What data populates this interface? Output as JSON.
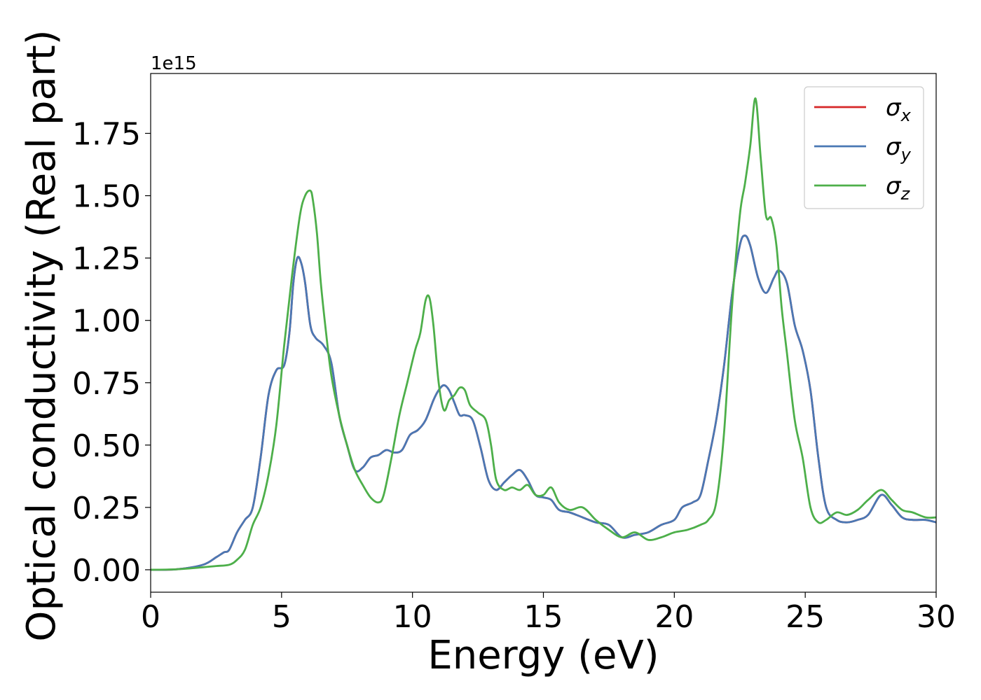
{
  "chart_data": {
    "type": "line",
    "title": "",
    "xlabel": "Energy (eV)",
    "ylabel": "Optical conductivity (Real part)",
    "y_offset_text": "1e15",
    "xlim": [
      0,
      30
    ],
    "ylim": [
      -0.09,
      1.99
    ],
    "y_multiplier": 1000000000000000.0,
    "grid": false,
    "legend_position": "top-right",
    "x_ticks": [
      0,
      5,
      10,
      15,
      20,
      25,
      30
    ],
    "x_tick_labels": [
      "0",
      "5",
      "10",
      "15",
      "20",
      "25",
      "30"
    ],
    "y_ticks": [
      0.0,
      0.25,
      0.5,
      0.75,
      1.0,
      1.25,
      1.5,
      1.75
    ],
    "y_tick_labels": [
      "0.00",
      "0.25",
      "0.50",
      "0.75",
      "1.00",
      "1.25",
      "1.50",
      "1.75"
    ],
    "series": [
      {
        "name": "σx",
        "legend_base": "σ",
        "legend_sub": "x",
        "color": "#d62728",
        "x": [
          0,
          1,
          2,
          2.5,
          2.8,
          3,
          3.3,
          3.6,
          3.9,
          4.2,
          4.5,
          4.8,
          5.1,
          5.3,
          5.45,
          5.6,
          5.75,
          5.9,
          6.1,
          6.3,
          6.6,
          6.9,
          7.2,
          7.5,
          7.8,
          8.1,
          8.4,
          8.7,
          9,
          9.3,
          9.6,
          9.9,
          10.2,
          10.5,
          10.8,
          11,
          11.2,
          11.4,
          11.6,
          11.8,
          12,
          12.3,
          12.6,
          12.9,
          13.2,
          13.5,
          13.8,
          14.1,
          14.4,
          14.7,
          15,
          15.3,
          15.6,
          16,
          16.5,
          17,
          17.5,
          18,
          18.5,
          19,
          19.5,
          20,
          20.3,
          20.7,
          21,
          21.3,
          21.6,
          21.9,
          22.2,
          22.5,
          22.7,
          22.9,
          23.2,
          23.5,
          23.8,
          24,
          24.3,
          24.6,
          24.9,
          25.2,
          25.5,
          25.8,
          26.2,
          26.6,
          27,
          27.4,
          27.9,
          28.3,
          28.7,
          29.1,
          29.6,
          30
        ],
        "y": [
          0,
          0.002,
          0.02,
          0.05,
          0.07,
          0.08,
          0.15,
          0.2,
          0.25,
          0.45,
          0.7,
          0.8,
          0.82,
          0.95,
          1.15,
          1.25,
          1.23,
          1.15,
          0.98,
          0.93,
          0.9,
          0.83,
          0.62,
          0.5,
          0.4,
          0.41,
          0.45,
          0.46,
          0.48,
          0.47,
          0.48,
          0.54,
          0.56,
          0.6,
          0.68,
          0.72,
          0.74,
          0.72,
          0.67,
          0.62,
          0.62,
          0.6,
          0.49,
          0.36,
          0.32,
          0.35,
          0.38,
          0.4,
          0.36,
          0.3,
          0.29,
          0.28,
          0.24,
          0.23,
          0.21,
          0.19,
          0.18,
          0.13,
          0.14,
          0.15,
          0.18,
          0.2,
          0.25,
          0.27,
          0.3,
          0.44,
          0.6,
          0.82,
          1.1,
          1.3,
          1.34,
          1.3,
          1.17,
          1.11,
          1.17,
          1.2,
          1.15,
          0.98,
          0.88,
          0.72,
          0.45,
          0.25,
          0.2,
          0.19,
          0.2,
          0.22,
          0.3,
          0.26,
          0.21,
          0.2,
          0.2,
          0.19
        ]
      },
      {
        "name": "σy",
        "legend_base": "σ",
        "legend_sub": "y",
        "color": "#4a78b4",
        "x": [
          0,
          1,
          2,
          2.5,
          2.8,
          3,
          3.3,
          3.6,
          3.9,
          4.2,
          4.5,
          4.8,
          5.1,
          5.3,
          5.45,
          5.6,
          5.75,
          5.9,
          6.1,
          6.3,
          6.6,
          6.9,
          7.2,
          7.5,
          7.8,
          8.1,
          8.4,
          8.7,
          9,
          9.3,
          9.6,
          9.9,
          10.2,
          10.5,
          10.8,
          11,
          11.2,
          11.4,
          11.6,
          11.8,
          12,
          12.3,
          12.6,
          12.9,
          13.2,
          13.5,
          13.8,
          14.1,
          14.4,
          14.7,
          15,
          15.3,
          15.6,
          16,
          16.5,
          17,
          17.5,
          18,
          18.5,
          19,
          19.5,
          20,
          20.3,
          20.7,
          21,
          21.3,
          21.6,
          21.9,
          22.2,
          22.5,
          22.7,
          22.9,
          23.2,
          23.5,
          23.8,
          24,
          24.3,
          24.6,
          24.9,
          25.2,
          25.5,
          25.8,
          26.2,
          26.6,
          27,
          27.4,
          27.9,
          28.3,
          28.7,
          29.1,
          29.6,
          30
        ],
        "y": [
          0,
          0.002,
          0.02,
          0.05,
          0.07,
          0.08,
          0.15,
          0.2,
          0.25,
          0.45,
          0.7,
          0.8,
          0.82,
          0.95,
          1.15,
          1.25,
          1.23,
          1.15,
          0.98,
          0.93,
          0.9,
          0.83,
          0.62,
          0.5,
          0.4,
          0.41,
          0.45,
          0.46,
          0.48,
          0.47,
          0.48,
          0.54,
          0.56,
          0.6,
          0.68,
          0.72,
          0.74,
          0.72,
          0.67,
          0.62,
          0.62,
          0.6,
          0.49,
          0.36,
          0.32,
          0.35,
          0.38,
          0.4,
          0.36,
          0.3,
          0.29,
          0.28,
          0.24,
          0.23,
          0.21,
          0.19,
          0.18,
          0.13,
          0.14,
          0.15,
          0.18,
          0.2,
          0.25,
          0.27,
          0.3,
          0.44,
          0.6,
          0.82,
          1.1,
          1.3,
          1.34,
          1.3,
          1.17,
          1.11,
          1.17,
          1.2,
          1.15,
          0.98,
          0.88,
          0.72,
          0.45,
          0.25,
          0.2,
          0.19,
          0.2,
          0.22,
          0.3,
          0.26,
          0.21,
          0.2,
          0.2,
          0.19
        ]
      },
      {
        "name": "σz",
        "legend_base": "σ",
        "legend_sub": "z",
        "color": "#4daf4a",
        "x": [
          0,
          1,
          2,
          2.5,
          3,
          3.3,
          3.6,
          3.9,
          4.2,
          4.5,
          4.8,
          5.1,
          5.4,
          5.7,
          5.9,
          6.1,
          6.2,
          6.35,
          6.5,
          6.7,
          6.9,
          7.2,
          7.5,
          7.8,
          8.1,
          8.4,
          8.7,
          8.9,
          9.2,
          9.5,
          9.8,
          10.1,
          10.3,
          10.5,
          10.65,
          10.8,
          11,
          11.2,
          11.4,
          11.6,
          11.8,
          12,
          12.2,
          12.5,
          12.8,
          13,
          13.2,
          13.5,
          13.8,
          14.1,
          14.4,
          14.7,
          15,
          15.3,
          15.6,
          16,
          16.5,
          17,
          17.5,
          18,
          18.5,
          19,
          19.5,
          20,
          20.5,
          21,
          21.3,
          21.6,
          21.9,
          22.2,
          22.5,
          22.7,
          22.9,
          23.1,
          23.3,
          23.5,
          23.7,
          23.9,
          24.1,
          24.3,
          24.6,
          24.9,
          25.2,
          25.5,
          25.8,
          26.2,
          26.6,
          27,
          27.4,
          27.9,
          28.3,
          28.7,
          29.1,
          29.6,
          30
        ],
        "y": [
          0,
          0.002,
          0.01,
          0.015,
          0.02,
          0.04,
          0.08,
          0.18,
          0.25,
          0.38,
          0.58,
          0.9,
          1.18,
          1.42,
          1.5,
          1.52,
          1.48,
          1.35,
          1.15,
          0.95,
          0.78,
          0.62,
          0.5,
          0.4,
          0.34,
          0.29,
          0.27,
          0.3,
          0.45,
          0.62,
          0.75,
          0.88,
          0.95,
          1.08,
          1.09,
          0.98,
          0.75,
          0.64,
          0.68,
          0.7,
          0.73,
          0.72,
          0.66,
          0.63,
          0.6,
          0.5,
          0.36,
          0.32,
          0.33,
          0.32,
          0.34,
          0.3,
          0.3,
          0.33,
          0.27,
          0.24,
          0.25,
          0.2,
          0.16,
          0.13,
          0.15,
          0.12,
          0.13,
          0.15,
          0.16,
          0.18,
          0.2,
          0.27,
          0.55,
          1.05,
          1.42,
          1.55,
          1.7,
          1.89,
          1.65,
          1.42,
          1.41,
          1.3,
          1.05,
          0.87,
          0.6,
          0.45,
          0.25,
          0.19,
          0.2,
          0.23,
          0.22,
          0.24,
          0.28,
          0.32,
          0.28,
          0.24,
          0.23,
          0.21,
          0.21
        ]
      }
    ]
  }
}
